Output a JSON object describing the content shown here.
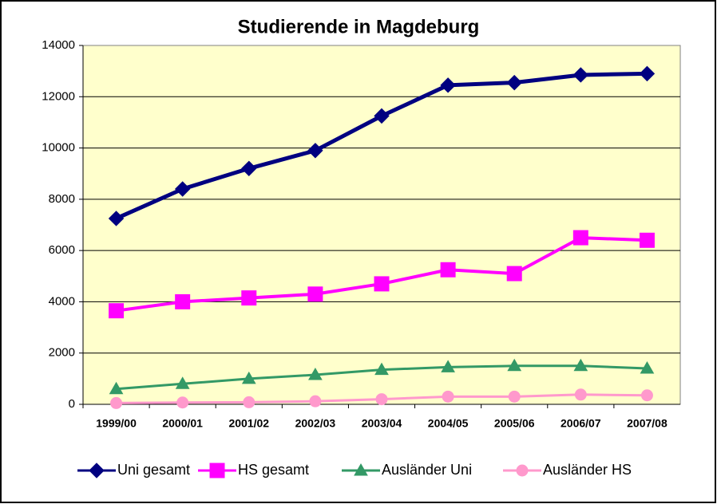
{
  "chart_data": {
    "type": "line",
    "title": "Studierende in Magdeburg",
    "categories": [
      "1999/00",
      "2000/01",
      "2001/02",
      "2002/03",
      "2003/04",
      "2004/05",
      "2005/06",
      "2006/07",
      "2007/08"
    ],
    "series": [
      {
        "name": "Uni gesamt",
        "color": "#000080",
        "marker": "diamond",
        "values": [
          7250,
          8400,
          9200,
          9900,
          11250,
          12450,
          12550,
          12850,
          12900
        ]
      },
      {
        "name": "HS gesamt",
        "color": "#ff00ff",
        "marker": "square",
        "values": [
          3650,
          4000,
          4150,
          4300,
          4700,
          5250,
          5100,
          6500,
          6400
        ]
      },
      {
        "name": "Ausländer Uni",
        "color": "#339966",
        "marker": "triangle",
        "values": [
          600,
          800,
          1000,
          1150,
          1350,
          1450,
          1500,
          1500,
          1400
        ]
      },
      {
        "name": "Ausländer HS",
        "color": "#ff99cc",
        "marker": "circle",
        "values": [
          50,
          70,
          80,
          120,
          200,
          300,
          300,
          380,
          350
        ]
      }
    ],
    "ylim": [
      0,
      14000
    ],
    "yticks": [
      0,
      2000,
      4000,
      6000,
      8000,
      10000,
      12000,
      14000
    ],
    "grid": true,
    "legend": "bottom",
    "background": "#ffffcc"
  }
}
